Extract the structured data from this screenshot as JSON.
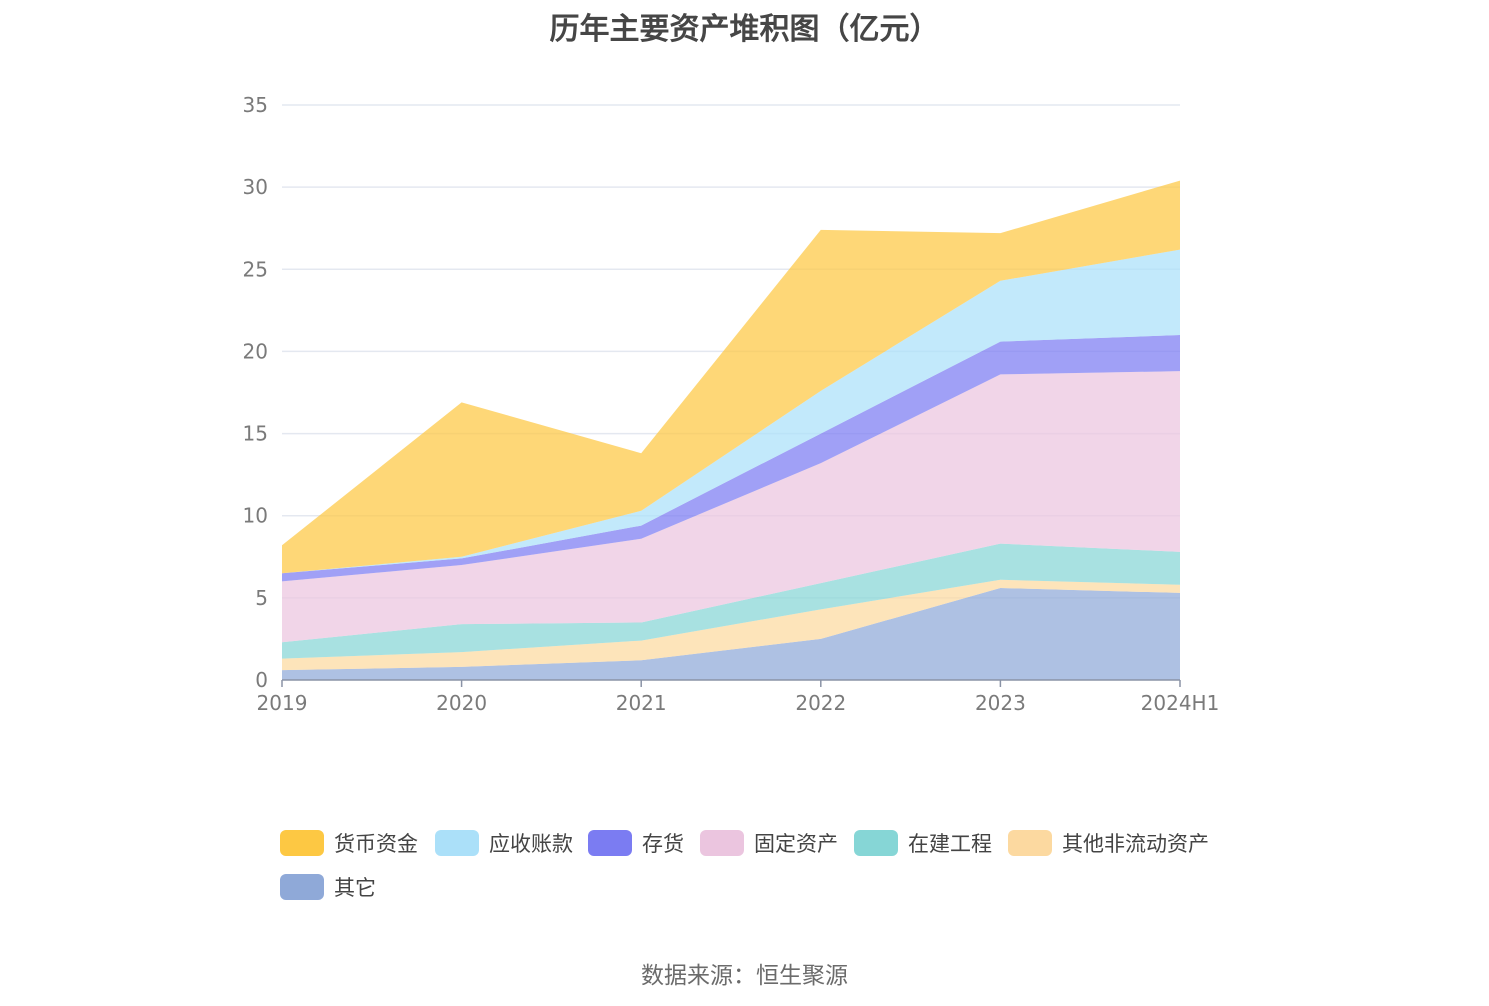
{
  "title": "历年主要资产堆积图（亿元）",
  "source": "数据来源：恒生聚源",
  "chart_data": {
    "type": "area",
    "stacked": true,
    "title": "历年主要资产堆积图（亿元）",
    "categories": [
      "2019",
      "2020",
      "2021",
      "2022",
      "2023",
      "2024H1"
    ],
    "ylim": [
      0,
      35
    ],
    "yticks": [
      "0",
      "5",
      "10",
      "15",
      "20",
      "25",
      "30",
      "35"
    ],
    "grid": true,
    "legend_position": "bottom",
    "series": [
      {
        "name": "其它",
        "color": "#8fa9d8",
        "values": [
          0.6,
          0.8,
          1.2,
          2.5,
          5.6,
          5.3
        ]
      },
      {
        "name": "其他非流动资产",
        "color": "#fcd9a0",
        "values": [
          0.7,
          0.9,
          1.2,
          1.8,
          0.5,
          0.5
        ]
      },
      {
        "name": "在建工程",
        "color": "#86d6d6",
        "values": [
          1.0,
          1.7,
          1.1,
          1.6,
          2.2,
          2.0
        ]
      },
      {
        "name": "固定资产",
        "color": "#ebc5df",
        "values": [
          3.7,
          3.6,
          5.1,
          7.3,
          10.3,
          11.0
        ]
      },
      {
        "name": "存货",
        "color": "#7b7cf2",
        "values": [
          0.5,
          0.4,
          0.8,
          1.8,
          2.0,
          2.2
        ]
      },
      {
        "name": "应收账款",
        "color": "#abe0f9",
        "values": [
          0.0,
          0.1,
          0.9,
          2.6,
          3.7,
          5.2
        ]
      },
      {
        "name": "货币资金",
        "color": "#fdc843",
        "values": [
          1.7,
          9.4,
          3.5,
          9.8,
          2.9,
          4.2
        ]
      }
    ]
  }
}
